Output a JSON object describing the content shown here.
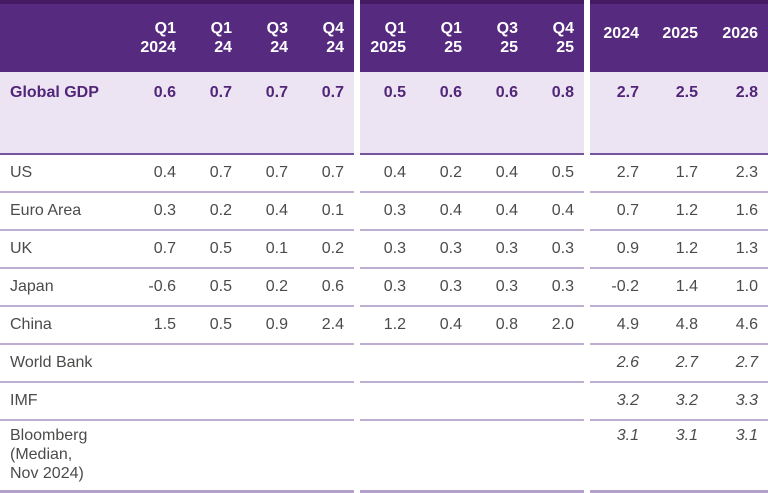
{
  "colors": {
    "header_bg": "#562a7e",
    "header_top_line": "#451a63",
    "header_text": "#ffffff",
    "highlight_row_bg": "#ece4f3",
    "highlight_text": "#512577",
    "body_text": "#4b4b4a",
    "row_divider": "#bfaed3",
    "highlight_row_divider": "#77549e",
    "bottom_bar": "#b3a0cb"
  },
  "chart_data": {
    "type": "table",
    "column_headers": {
      "label": "",
      "q2024": [
        "Q1\n2024",
        "Q1\n24",
        "Q3\n24",
        "Q4\n24"
      ],
      "q2025": [
        "Q1\n2025",
        "Q1\n25",
        "Q3\n25",
        "Q4\n25"
      ],
      "annual": [
        "2024",
        "2025",
        "2026"
      ]
    },
    "rows": [
      {
        "label": "Global GDP",
        "q2024": [
          "0.6",
          "0.7",
          "0.7",
          "0.7"
        ],
        "q2025": [
          "0.5",
          "0.6",
          "0.6",
          "0.8"
        ],
        "annual": [
          "2.7",
          "2.5",
          "2.8"
        ]
      },
      {
        "label": "US",
        "q2024": [
          "0.4",
          "0.7",
          "0.7",
          "0.7"
        ],
        "q2025": [
          "0.4",
          "0.2",
          "0.4",
          "0.5"
        ],
        "annual": [
          "2.7",
          "1.7",
          "2.3"
        ]
      },
      {
        "label": "Euro Area",
        "q2024": [
          "0.3",
          "0.2",
          "0.4",
          "0.1"
        ],
        "q2025": [
          "0.3",
          "0.4",
          "0.4",
          "0.4"
        ],
        "annual": [
          "0.7",
          "1.2",
          "1.6"
        ]
      },
      {
        "label": "UK",
        "q2024": [
          "0.7",
          "0.5",
          "0.1",
          "0.2"
        ],
        "q2025": [
          "0.3",
          "0.3",
          "0.3",
          "0.3"
        ],
        "annual": [
          "0.9",
          "1.2",
          "1.3"
        ]
      },
      {
        "label": "Japan",
        "q2024": [
          "-0.6",
          "0.5",
          "0.2",
          "0.6"
        ],
        "q2025": [
          "0.3",
          "0.3",
          "0.3",
          "0.3"
        ],
        "annual": [
          "-0.2",
          "1.4",
          "1.0"
        ]
      },
      {
        "label": "China",
        "q2024": [
          "1.5",
          "0.5",
          "0.9",
          "2.4"
        ],
        "q2025": [
          "1.2",
          "0.4",
          "0.8",
          "2.0"
        ],
        "annual": [
          "4.9",
          "4.8",
          "4.6"
        ]
      },
      {
        "label": "World Bank",
        "annual": [
          "2.6",
          "2.7",
          "2.7"
        ]
      },
      {
        "label": "IMF",
        "annual": [
          "3.2",
          "3.2",
          "3.3"
        ]
      },
      {
        "label": "Bloomberg\n(Median,\nNov 2024)",
        "annual": [
          "3.1",
          "3.1",
          "3.1"
        ]
      }
    ]
  }
}
